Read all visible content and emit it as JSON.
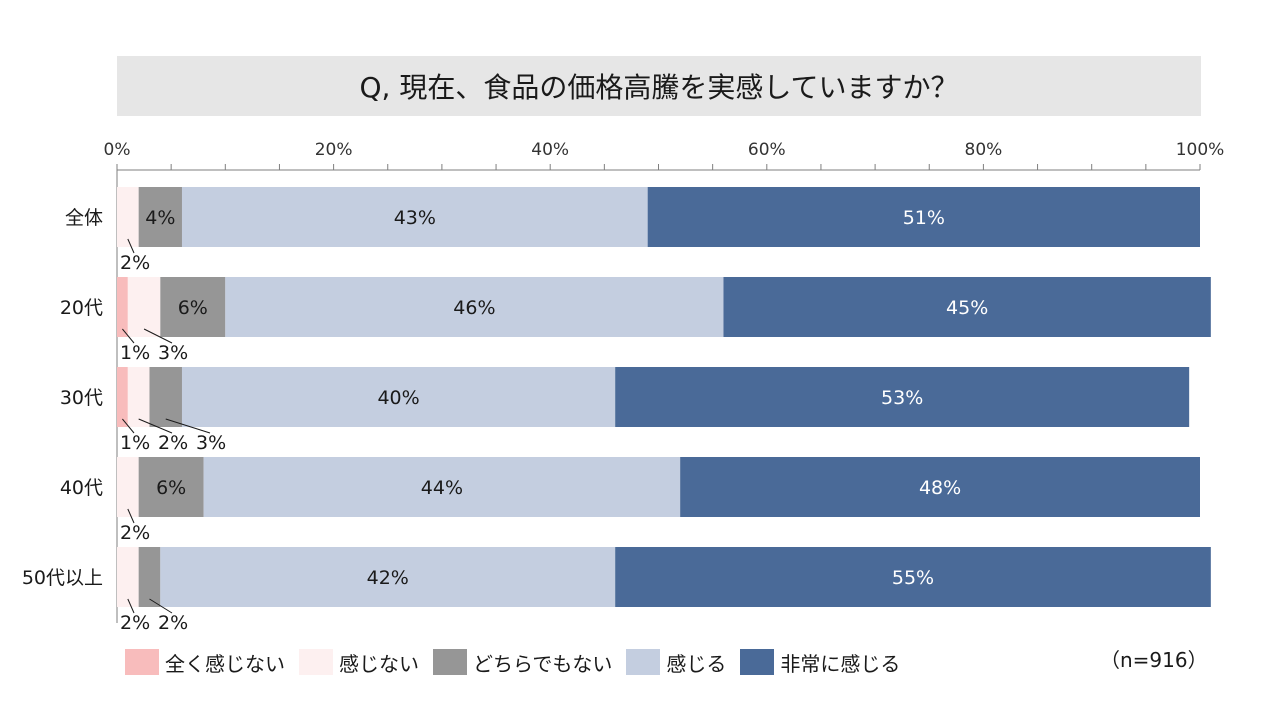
{
  "chart_data": {
    "type": "bar",
    "orientation": "horizontal",
    "stacked": true,
    "title": "Q, 現在、食品の価格高騰を実感していますか？",
    "xlim": [
      0,
      100
    ],
    "x_ticks": [
      "0%",
      "20%",
      "40%",
      "60%",
      "80%",
      "100%"
    ],
    "categories": [
      "全体",
      "20代",
      "30代",
      "40代",
      "50代以上"
    ],
    "series": [
      {
        "name": "全く感じない",
        "color": "#f8bcbc",
        "values": [
          0,
          1,
          1,
          0,
          0
        ]
      },
      {
        "name": "感じない",
        "color": "#fdf0f0",
        "values": [
          2,
          3,
          2,
          2,
          2
        ]
      },
      {
        "name": "どちらでもない",
        "color": "#969696",
        "values": [
          4,
          6,
          3,
          6,
          2
        ]
      },
      {
        "name": "感じる",
        "color": "#c4cee0",
        "values": [
          43,
          46,
          40,
          44,
          42
        ]
      },
      {
        "name": "非常に感じる",
        "color": "#4a6a98",
        "values": [
          51,
          45,
          53,
          48,
          55
        ]
      }
    ],
    "legend_position": "bottom",
    "note": "（n=916）"
  }
}
